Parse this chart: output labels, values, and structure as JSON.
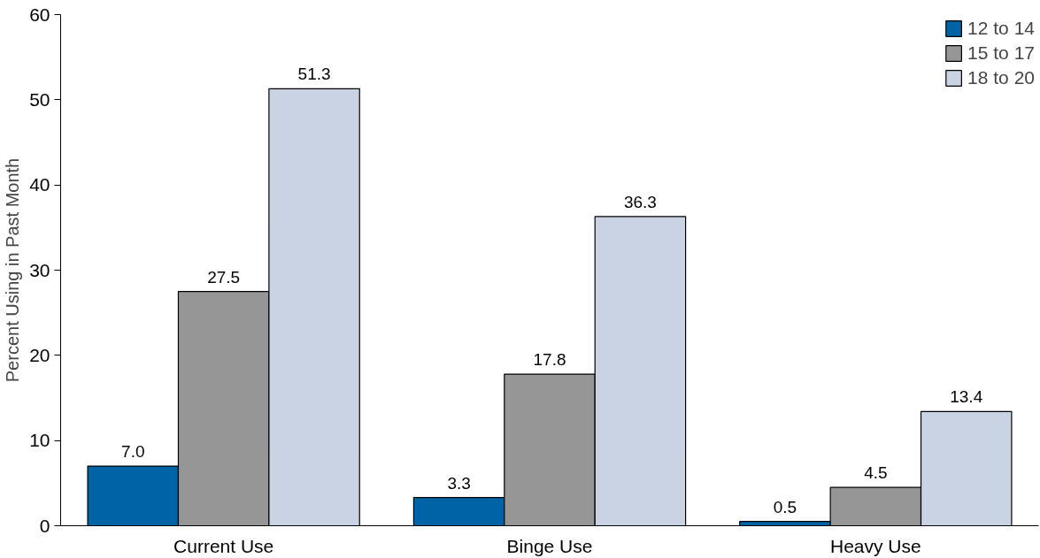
{
  "chart_data": {
    "type": "bar",
    "ylabel": "Percent Using in Past Month",
    "categories": [
      "Current Use",
      "Binge Use",
      "Heavy Use"
    ],
    "series": [
      {
        "name": "12 to 14",
        "color": "#0063a6",
        "values": [
          7.0,
          3.3,
          0.5
        ],
        "value_labels": [
          "7.0",
          "3.3",
          "0.5"
        ]
      },
      {
        "name": "15 to 17",
        "color": "#969696",
        "values": [
          27.5,
          17.8,
          4.5
        ],
        "value_labels": [
          "27.5",
          "17.8",
          "4.5"
        ]
      },
      {
        "name": "18 to 20",
        "color": "#c9d3e4",
        "values": [
          51.3,
          36.3,
          13.4
        ],
        "value_labels": [
          "51.3",
          "36.3",
          "13.4"
        ]
      }
    ],
    "ylim": [
      0,
      60
    ],
    "yticks": [
      0,
      10,
      20,
      30,
      40,
      50,
      60
    ],
    "grid": false,
    "legend": "top right"
  }
}
